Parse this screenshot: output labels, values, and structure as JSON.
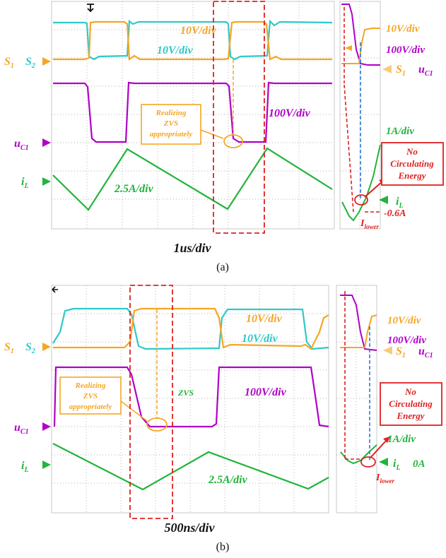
{
  "panel_a": {
    "main": {
      "labels": {
        "v10_top": "10V/div",
        "v10_mid": "10V/div",
        "v100": "100V/div",
        "i25": "2.5A/div",
        "s1": "S",
        "s1_sub": "1",
        "s2": "S",
        "s2_sub": "2",
        "uc1": "u",
        "uc1_sub": "C1",
        "il": "i",
        "il_sub": "L"
      },
      "callout": [
        "Realizing",
        "ZVS",
        "appropriately"
      ],
      "timebase": "1us/div"
    },
    "zoom": {
      "labels": {
        "v10": "10V/div",
        "v100": "100V/div",
        "a1": "1A/div",
        "s1": "S",
        "s1_sub": "1",
        "uc1": "u",
        "uc1_sub": "C1",
        "il": "i",
        "il_sub": "L",
        "ilower": "I",
        "ilower_sub": "lower",
        "current": "-0.6A"
      },
      "callout": [
        "No",
        "Circulating",
        "Energy"
      ]
    },
    "caption": "(a)"
  },
  "panel_b": {
    "main": {
      "labels": {
        "v10_top": "10V/div",
        "v10_mid": "10V/div",
        "v100": "100V/div",
        "i25": "2.5A/div",
        "zvs": "ZVS",
        "s1": "S",
        "s1_sub": "1",
        "s2": "S",
        "s2_sub": "2",
        "uc1": "u",
        "uc1_sub": "C1",
        "il": "i",
        "il_sub": "L"
      },
      "callout": [
        "Realizing",
        "ZVS",
        "appropriately"
      ],
      "timebase": "500ns/div"
    },
    "zoom": {
      "labels": {
        "v10": "10V/div",
        "v100": "100V/div",
        "a1": "1A/div",
        "s1": "S",
        "s1_sub": "1",
        "uc1": "u",
        "uc1_sub": "C1",
        "il": "i",
        "il_sub": "L",
        "ilower": "I",
        "ilower_sub": "lower",
        "current": "0A"
      },
      "callout": [
        "No",
        "Circulating",
        "Energy"
      ]
    },
    "caption": "(b)"
  },
  "colors": {
    "s1": "#f5a623",
    "s2": "#30c8c8",
    "uc1": "#b000c8",
    "il": "#22b43c",
    "highlight": "#e02020",
    "marker": "#1f6fd0",
    "grid": "#9a9a9a"
  }
}
